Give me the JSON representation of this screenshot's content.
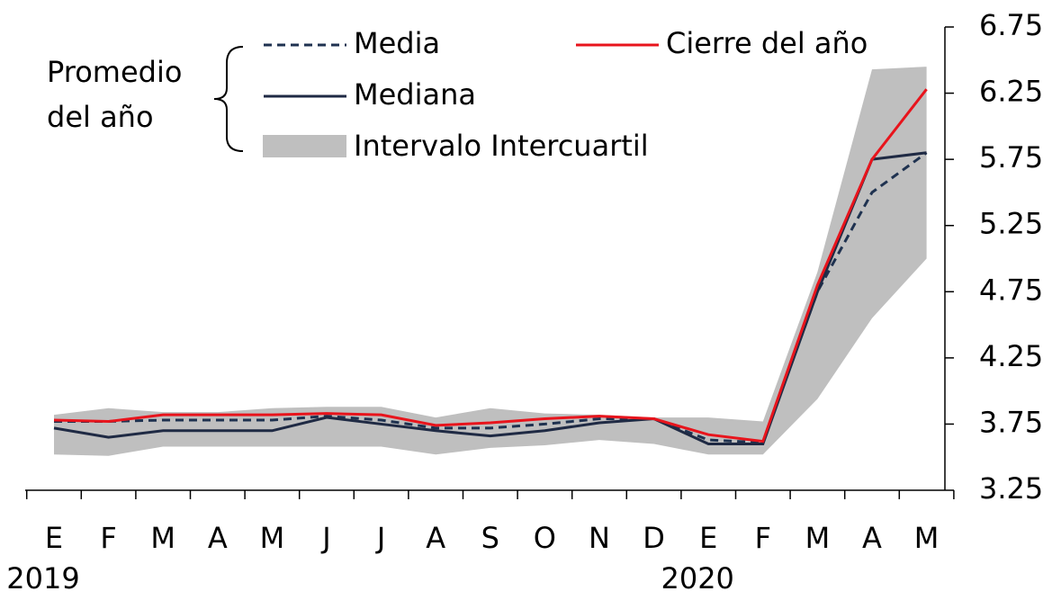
{
  "chart_data": {
    "type": "line",
    "categories": [
      "E",
      "F",
      "M",
      "A",
      "M",
      "J",
      "J",
      "A",
      "S",
      "O",
      "N",
      "D",
      "E",
      "F",
      "M",
      "A",
      "M"
    ],
    "year_labels": [
      "2019",
      null,
      null,
      null,
      null,
      null,
      null,
      null,
      null,
      null,
      null,
      null,
      "2020",
      null,
      null,
      null,
      null
    ],
    "legend_group_label": [
      "Promedio",
      "del año"
    ],
    "band": {
      "name": "Intervalo Intercuartil",
      "color": "#bfbfbf",
      "low": [
        3.52,
        3.51,
        3.58,
        3.58,
        3.58,
        3.58,
        3.58,
        3.52,
        3.57,
        3.59,
        3.63,
        3.6,
        3.52,
        3.52,
        3.94,
        4.55,
        5.0
      ],
      "high": [
        3.82,
        3.87,
        3.84,
        3.84,
        3.87,
        3.88,
        3.88,
        3.8,
        3.87,
        3.83,
        3.82,
        3.8,
        3.8,
        3.77,
        4.9,
        6.43,
        6.45
      ]
    },
    "series": [
      {
        "name": "Media",
        "color": "#1f3250",
        "dash": true,
        "values": [
          3.77,
          3.77,
          3.78,
          3.78,
          3.78,
          3.81,
          3.78,
          3.72,
          3.72,
          3.75,
          3.79,
          3.79,
          3.63,
          3.61,
          4.75,
          5.5,
          5.8
        ]
      },
      {
        "name": "Mediana",
        "color": "#1f2a44",
        "dash": false,
        "values": [
          3.72,
          3.65,
          3.7,
          3.7,
          3.7,
          3.8,
          3.75,
          3.7,
          3.66,
          3.7,
          3.76,
          3.79,
          3.6,
          3.6,
          4.75,
          5.75,
          5.8
        ]
      },
      {
        "name": "Cierre del año",
        "color": "#e8141c",
        "dash": false,
        "values": [
          3.78,
          3.77,
          3.82,
          3.82,
          3.82,
          3.83,
          3.82,
          3.74,
          3.76,
          3.79,
          3.81,
          3.79,
          3.67,
          3.62,
          4.8,
          5.75,
          6.28
        ]
      }
    ],
    "ylim": [
      3.25,
      6.75
    ],
    "yticks": [
      3.25,
      3.75,
      4.25,
      4.75,
      5.25,
      5.75,
      6.25,
      6.75
    ],
    "yaxis_side": "right"
  }
}
